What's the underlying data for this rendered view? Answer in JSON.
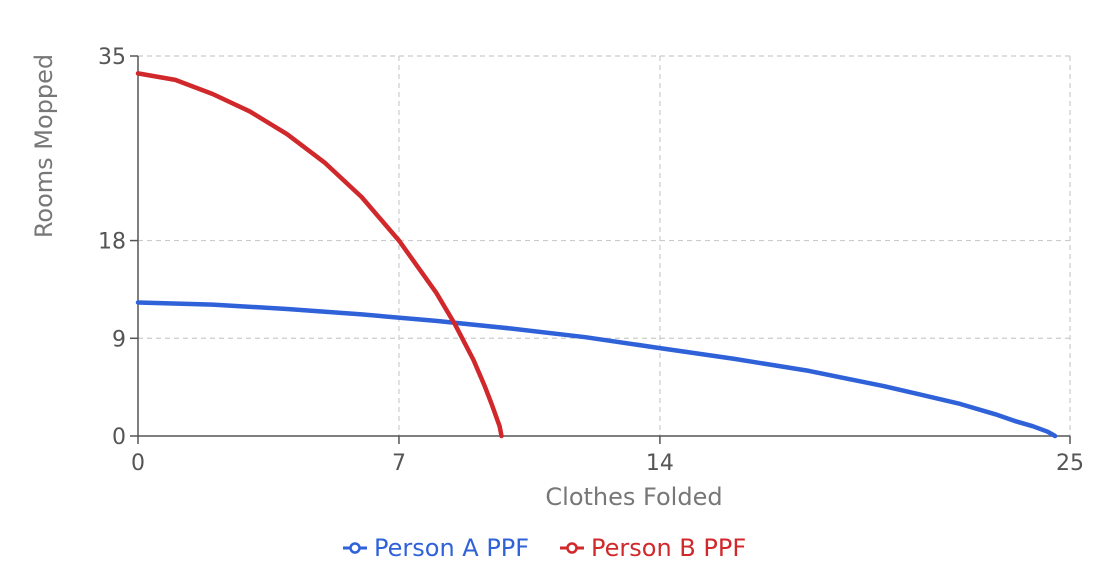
{
  "chart_data": {
    "type": "line",
    "title": "",
    "xlabel": "Clothes Folded",
    "ylabel": "Rooms Mopped",
    "xlim": [
      0,
      25
    ],
    "ylim": [
      0,
      35
    ],
    "x_ticks": [
      0,
      7,
      14,
      25
    ],
    "y_ticks": [
      0,
      9,
      18,
      35
    ],
    "grid": true,
    "legend_position": "bottom-center",
    "series": [
      {
        "name": "Person A PPF",
        "color": "#2f62d9",
        "x": [
          0,
          2,
          4,
          6,
          8,
          10,
          12,
          14,
          16,
          18,
          20,
          21,
          22,
          23,
          23.5,
          24,
          24.4,
          24.6
        ],
        "y": [
          12.3,
          12.1,
          11.7,
          11.2,
          10.6,
          9.9,
          9.1,
          8.1,
          7.1,
          6.0,
          4.6,
          3.8,
          3.0,
          2.0,
          1.4,
          0.9,
          0.4,
          0.0
        ]
      },
      {
        "name": "Person B PPF",
        "color": "#d0282b",
        "x": [
          0,
          1,
          2,
          3,
          4,
          5,
          6,
          7,
          8,
          8.5,
          9,
          9.3,
          9.5,
          9.7,
          9.75
        ],
        "y": [
          33.4,
          32.8,
          31.5,
          29.9,
          27.8,
          25.2,
          22.0,
          18.0,
          13.2,
          10.3,
          7.0,
          4.6,
          2.8,
          0.9,
          0.0
        ]
      }
    ]
  }
}
